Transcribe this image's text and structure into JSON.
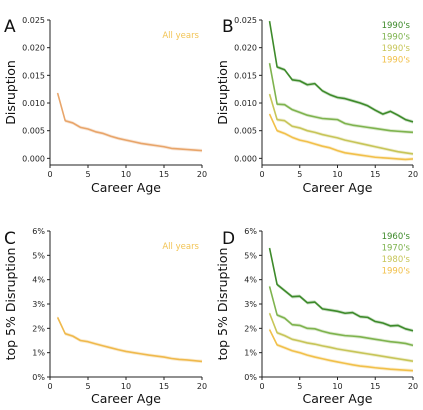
{
  "chart_data": [
    {
      "panel": "A",
      "type": "line",
      "xlabel": "Career Age",
      "ylabel": "Disruption",
      "xlim": [
        0,
        20
      ],
      "ylim": [
        -0.0012,
        0.025
      ],
      "xticks": [
        0,
        5,
        10,
        15,
        20
      ],
      "yticks": [
        0.0,
        0.005,
        0.01,
        0.015,
        0.02,
        0.025
      ],
      "yticklabels": [
        "0.000",
        "0.005",
        "0.010",
        "0.015",
        "0.020",
        "0.025"
      ],
      "legend_position": "top-right",
      "series": [
        {
          "name": "All years",
          "color": "#e8a56a",
          "legend_color": "#f2c455",
          "x": [
            1,
            2,
            3,
            4,
            5,
            6,
            7,
            8,
            9,
            10,
            11,
            12,
            13,
            14,
            15,
            16,
            17,
            18,
            19,
            20
          ],
          "y": [
            0.0118,
            0.0068,
            0.0064,
            0.0056,
            0.0053,
            0.0048,
            0.0045,
            0.004,
            0.0036,
            0.0033,
            0.003,
            0.0027,
            0.0025,
            0.0023,
            0.0021,
            0.0018,
            0.0017,
            0.0016,
            0.0015,
            0.0014
          ]
        }
      ]
    },
    {
      "panel": "B",
      "type": "line",
      "xlabel": "Career Age",
      "ylabel": "Disruption",
      "xlim": [
        0,
        20
      ],
      "ylim": [
        -0.0012,
        0.025
      ],
      "xticks": [
        0,
        5,
        10,
        15,
        20
      ],
      "yticks": [
        0.0,
        0.005,
        0.01,
        0.015,
        0.02,
        0.025
      ],
      "yticklabels": [
        "0.000",
        "0.005",
        "0.010",
        "0.015",
        "0.020",
        "0.025"
      ],
      "legend_position": "top-right",
      "series": [
        {
          "name": "1990's",
          "color": "#3d8a2a",
          "x": [
            1,
            2,
            3,
            4,
            5,
            6,
            7,
            8,
            9,
            10,
            11,
            12,
            13,
            14,
            15,
            16,
            17,
            18,
            19,
            20
          ],
          "y": [
            0.0248,
            0.0165,
            0.016,
            0.0142,
            0.014,
            0.0133,
            0.0135,
            0.0122,
            0.0115,
            0.011,
            0.0108,
            0.0104,
            0.01,
            0.0095,
            0.0087,
            0.008,
            0.0085,
            0.0078,
            0.007,
            0.0066
          ]
        },
        {
          "name": "1990's",
          "color": "#7eb34e",
          "x": [
            1,
            2,
            3,
            4,
            5,
            6,
            7,
            8,
            9,
            10,
            11,
            12,
            13,
            14,
            15,
            16,
            17,
            18,
            19,
            20
          ],
          "y": [
            0.0172,
            0.0098,
            0.0097,
            0.0088,
            0.0083,
            0.0078,
            0.0075,
            0.0072,
            0.0071,
            0.007,
            0.0063,
            0.006,
            0.0058,
            0.0056,
            0.0054,
            0.0052,
            0.005,
            0.0049,
            0.0048,
            0.0047
          ]
        },
        {
          "name": "1990's",
          "color": "#c7c558",
          "x": [
            1,
            2,
            3,
            4,
            5,
            6,
            7,
            8,
            9,
            10,
            11,
            12,
            13,
            14,
            15,
            16,
            17,
            18,
            19,
            20
          ],
          "y": [
            0.0116,
            0.007,
            0.0068,
            0.0058,
            0.0055,
            0.005,
            0.0047,
            0.0043,
            0.004,
            0.0037,
            0.0033,
            0.003,
            0.0027,
            0.0024,
            0.0021,
            0.0018,
            0.0015,
            0.0012,
            0.001,
            0.0008
          ]
        },
        {
          "name": "1990's",
          "color": "#f1c04a",
          "x": [
            1,
            2,
            3,
            4,
            5,
            6,
            7,
            8,
            9,
            10,
            11,
            12,
            13,
            14,
            15,
            16,
            17,
            18,
            19,
            20
          ],
          "y": [
            0.008,
            0.005,
            0.0045,
            0.0038,
            0.0033,
            0.003,
            0.0026,
            0.0022,
            0.0019,
            0.0014,
            0.001,
            0.0008,
            0.0006,
            0.0004,
            0.0002,
            0.0001,
            0.0,
            -0.0001,
            -0.0002,
            -0.0001
          ]
        }
      ]
    },
    {
      "panel": "C",
      "type": "line",
      "xlabel": "Career Age",
      "ylabel": "top 5% Disruption",
      "xlim": [
        0,
        20
      ],
      "ylim": [
        0,
        6
      ],
      "xticks": [
        0,
        5,
        10,
        15,
        20
      ],
      "yticks": [
        0,
        1,
        2,
        3,
        4,
        5,
        6
      ],
      "yticklabels": [
        "0%",
        "1%",
        "2%",
        "3%",
        "4%",
        "5%",
        "6%"
      ],
      "legend_position": "top-right",
      "series": [
        {
          "name": "All years",
          "color": "#efb94c",
          "legend_color": "#f2c455",
          "x": [
            1,
            2,
            3,
            4,
            5,
            6,
            7,
            8,
            9,
            10,
            11,
            12,
            13,
            14,
            15,
            16,
            17,
            18,
            19,
            20
          ],
          "y": [
            2.45,
            1.78,
            1.68,
            1.5,
            1.45,
            1.36,
            1.28,
            1.2,
            1.12,
            1.05,
            1.0,
            0.95,
            0.9,
            0.86,
            0.82,
            0.76,
            0.72,
            0.7,
            0.67,
            0.64
          ]
        }
      ]
    },
    {
      "panel": "D",
      "type": "line",
      "xlabel": "Career Age",
      "ylabel": "top 5% Disruption",
      "xlim": [
        0,
        20
      ],
      "ylim": [
        0,
        6
      ],
      "xticks": [
        0,
        5,
        10,
        15,
        20
      ],
      "yticks": [
        0,
        1,
        2,
        3,
        4,
        5,
        6
      ],
      "yticklabels": [
        "0%",
        "1%",
        "2%",
        "3%",
        "4%",
        "5%",
        "6%"
      ],
      "legend_position": "top-right",
      "series": [
        {
          "name": "1960's",
          "color": "#3d8a2a",
          "x": [
            1,
            2,
            3,
            4,
            5,
            6,
            7,
            8,
            9,
            10,
            11,
            12,
            13,
            14,
            15,
            16,
            17,
            18,
            19,
            20
          ],
          "y": [
            5.3,
            3.8,
            3.55,
            3.3,
            3.32,
            3.05,
            3.08,
            2.8,
            2.75,
            2.7,
            2.62,
            2.65,
            2.48,
            2.45,
            2.28,
            2.22,
            2.1,
            2.12,
            1.98,
            1.9
          ]
        },
        {
          "name": "1970's",
          "color": "#7eb34e",
          "x": [
            1,
            2,
            3,
            4,
            5,
            6,
            7,
            8,
            9,
            10,
            11,
            12,
            13,
            14,
            15,
            16,
            17,
            18,
            19,
            20
          ],
          "y": [
            3.72,
            2.55,
            2.42,
            2.15,
            2.12,
            2.0,
            1.98,
            1.88,
            1.8,
            1.75,
            1.7,
            1.68,
            1.65,
            1.6,
            1.55,
            1.5,
            1.45,
            1.42,
            1.38,
            1.3
          ]
        },
        {
          "name": "1980's",
          "color": "#c7c558",
          "x": [
            1,
            2,
            3,
            4,
            5,
            6,
            7,
            8,
            9,
            10,
            11,
            12,
            13,
            14,
            15,
            16,
            17,
            18,
            19,
            20
          ],
          "y": [
            2.62,
            1.82,
            1.7,
            1.55,
            1.48,
            1.4,
            1.35,
            1.28,
            1.22,
            1.15,
            1.1,
            1.05,
            1.0,
            0.95,
            0.9,
            0.85,
            0.8,
            0.75,
            0.7,
            0.65
          ]
        },
        {
          "name": "1990's",
          "color": "#f1c04a",
          "x": [
            1,
            2,
            3,
            4,
            5,
            6,
            7,
            8,
            9,
            10,
            11,
            12,
            13,
            14,
            15,
            16,
            17,
            18,
            19,
            20
          ],
          "y": [
            1.95,
            1.32,
            1.2,
            1.08,
            1.0,
            0.9,
            0.82,
            0.75,
            0.68,
            0.62,
            0.56,
            0.5,
            0.45,
            0.42,
            0.38,
            0.35,
            0.32,
            0.3,
            0.28,
            0.26
          ]
        }
      ]
    }
  ]
}
